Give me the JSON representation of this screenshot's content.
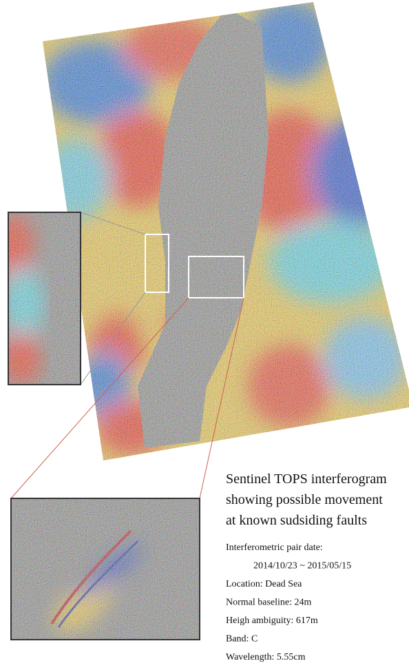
{
  "caption": {
    "title_lines": [
      "Sentinel TOPS interferogram",
      "showing possible movement",
      "at known sudsiding faults"
    ],
    "details": [
      "Interferometric pair date:",
      "2014/10/23 ~ 2015/05/15",
      "Location: Dead Sea",
      "Normal baseline: 24m",
      "Heigh ambiguity: 617m",
      "Band: C",
      "Wavelength: 5.55cm"
    ]
  }
}
